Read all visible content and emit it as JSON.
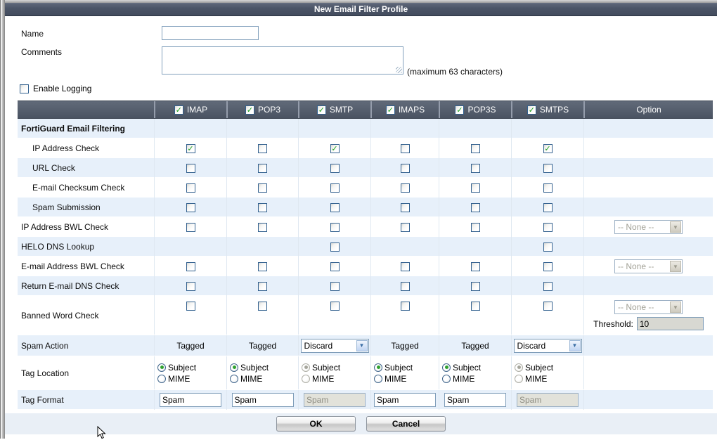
{
  "title": "New Email Filter Profile",
  "form": {
    "name_label": "Name",
    "name_value": "",
    "comments_label": "Comments",
    "comments_value": "",
    "comments_hint": "(maximum 63 characters)",
    "enable_logging_label": "Enable Logging",
    "enable_logging_checked": false
  },
  "table": {
    "columns": [
      "IMAP",
      "POP3",
      "SMTP",
      "IMAPS",
      "POP3S",
      "SMTPS"
    ],
    "header_checked": [
      true,
      true,
      true,
      true,
      true,
      true
    ],
    "option_header": "Option",
    "rows": [
      {
        "label": "FortiGuard Email Filtering",
        "section": true,
        "cells": [
          null,
          null,
          null,
          null,
          null,
          null
        ],
        "option": null
      },
      {
        "label": "IP Address Check",
        "indent": true,
        "cells": [
          {
            "type": "checkbox",
            "checked": true
          },
          {
            "type": "checkbox",
            "checked": false
          },
          {
            "type": "checkbox",
            "checked": true
          },
          {
            "type": "checkbox",
            "checked": false
          },
          {
            "type": "checkbox",
            "checked": false
          },
          {
            "type": "checkbox",
            "checked": true
          }
        ],
        "option": null
      },
      {
        "label": "URL Check",
        "indent": true,
        "cells": [
          {
            "type": "checkbox",
            "checked": false
          },
          {
            "type": "checkbox",
            "checked": false
          },
          {
            "type": "checkbox",
            "checked": false
          },
          {
            "type": "checkbox",
            "checked": false
          },
          {
            "type": "checkbox",
            "checked": false
          },
          {
            "type": "checkbox",
            "checked": false
          }
        ],
        "option": null
      },
      {
        "label": "E-mail Checksum Check",
        "indent": true,
        "cells": [
          {
            "type": "checkbox",
            "checked": false
          },
          {
            "type": "checkbox",
            "checked": false
          },
          {
            "type": "checkbox",
            "checked": false
          },
          {
            "type": "checkbox",
            "checked": false
          },
          {
            "type": "checkbox",
            "checked": false
          },
          {
            "type": "checkbox",
            "checked": false
          }
        ],
        "option": null
      },
      {
        "label": "Spam Submission",
        "indent": true,
        "cells": [
          {
            "type": "checkbox",
            "checked": false
          },
          {
            "type": "checkbox",
            "checked": false
          },
          {
            "type": "checkbox",
            "checked": false
          },
          {
            "type": "checkbox",
            "checked": false
          },
          {
            "type": "checkbox",
            "checked": false
          },
          {
            "type": "checkbox",
            "checked": false
          }
        ],
        "option": null
      },
      {
        "label": "IP Address BWL Check",
        "cells": [
          {
            "type": "checkbox",
            "checked": false
          },
          {
            "type": "checkbox",
            "checked": false
          },
          {
            "type": "checkbox",
            "checked": false
          },
          {
            "type": "checkbox",
            "checked": false
          },
          {
            "type": "checkbox",
            "checked": false
          },
          {
            "type": "checkbox",
            "checked": false
          }
        ],
        "option": {
          "type": "select",
          "value": "-- None --",
          "disabled": true
        }
      },
      {
        "label": "HELO DNS Lookup",
        "cells": [
          null,
          null,
          {
            "type": "checkbox",
            "checked": false
          },
          null,
          null,
          {
            "type": "checkbox",
            "checked": false
          }
        ],
        "option": null
      },
      {
        "label": "E-mail Address BWL Check",
        "cells": [
          {
            "type": "checkbox",
            "checked": false
          },
          {
            "type": "checkbox",
            "checked": false
          },
          {
            "type": "checkbox",
            "checked": false
          },
          {
            "type": "checkbox",
            "checked": false
          },
          {
            "type": "checkbox",
            "checked": false
          },
          {
            "type": "checkbox",
            "checked": false
          }
        ],
        "option": {
          "type": "select",
          "value": "-- None --",
          "disabled": true
        }
      },
      {
        "label": "Return E-mail DNS Check",
        "cells": [
          {
            "type": "checkbox",
            "checked": false
          },
          {
            "type": "checkbox",
            "checked": false
          },
          {
            "type": "checkbox",
            "checked": false
          },
          {
            "type": "checkbox",
            "checked": false
          },
          {
            "type": "checkbox",
            "checked": false
          },
          {
            "type": "checkbox",
            "checked": false
          }
        ],
        "option": null
      },
      {
        "label": "Banned Word Check",
        "cells": [
          {
            "type": "checkbox",
            "checked": false
          },
          {
            "type": "checkbox",
            "checked": false
          },
          {
            "type": "checkbox",
            "checked": false
          },
          {
            "type": "checkbox",
            "checked": false
          },
          {
            "type": "checkbox",
            "checked": false
          },
          {
            "type": "checkbox",
            "checked": false
          }
        ],
        "option": {
          "type": "threshold",
          "select_value": "-- None --",
          "select_disabled": true,
          "threshold_label": "Threshold:",
          "threshold_value": "10"
        }
      },
      {
        "label": "Spam Action",
        "cells": [
          {
            "type": "label",
            "value": "Tagged"
          },
          {
            "type": "label",
            "value": "Tagged"
          },
          {
            "type": "select",
            "value": "Discard",
            "disabled": false
          },
          {
            "type": "label",
            "value": "Tagged"
          },
          {
            "type": "label",
            "value": "Tagged"
          },
          {
            "type": "select",
            "value": "Discard",
            "disabled": false
          }
        ],
        "option": null
      },
      {
        "label": "Tag Location",
        "cells": [
          {
            "type": "radios",
            "options": [
              "Subject",
              "MIME"
            ],
            "selected": "Subject",
            "disabled": false
          },
          {
            "type": "radios",
            "options": [
              "Subject",
              "MIME"
            ],
            "selected": "Subject",
            "disabled": false
          },
          {
            "type": "radios",
            "options": [
              "Subject",
              "MIME"
            ],
            "selected": "Subject",
            "disabled": true
          },
          {
            "type": "radios",
            "options": [
              "Subject",
              "MIME"
            ],
            "selected": "Subject",
            "disabled": false
          },
          {
            "type": "radios",
            "options": [
              "Subject",
              "MIME"
            ],
            "selected": "Subject",
            "disabled": false
          },
          {
            "type": "radios",
            "options": [
              "Subject",
              "MIME"
            ],
            "selected": "Subject",
            "disabled": true
          }
        ],
        "option": null
      },
      {
        "label": "Tag Format",
        "cells": [
          {
            "type": "input",
            "value": "Spam",
            "disabled": false
          },
          {
            "type": "input",
            "value": "Spam",
            "disabled": false
          },
          {
            "type": "input",
            "value": "Spam",
            "disabled": true
          },
          {
            "type": "input",
            "value": "Spam",
            "disabled": false
          },
          {
            "type": "input",
            "value": "Spam",
            "disabled": false
          },
          {
            "type": "input",
            "value": "Spam",
            "disabled": true
          }
        ],
        "option": null
      }
    ]
  },
  "buttons": {
    "ok": "OK",
    "cancel": "Cancel"
  },
  "colors": {
    "title_bar": "#4c5668",
    "header_bg": "#545d6c",
    "row_alt": "#e7f0fa",
    "check_green": "#1b9e1b",
    "select_border": "#7f9db9",
    "footer_bg": "#e9eff6"
  }
}
